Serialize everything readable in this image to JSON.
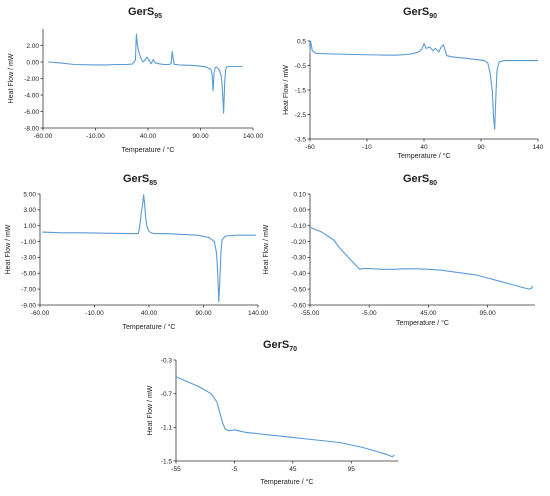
{
  "chart_data": [
    {
      "type": "line",
      "title": "GerS",
      "title_sub": "95",
      "xlabel": "Temperature / °C",
      "ylabel": "Heat Flow / mW",
      "xlim": [
        -60,
        140
      ],
      "ylim": [
        -8,
        4
      ],
      "xticks": [
        -60,
        -10,
        40,
        90,
        140
      ],
      "xtick_labels": [
        "-60.00",
        "-10.00",
        "40.00",
        "90.00",
        "140.00"
      ],
      "yticks": [
        2,
        0,
        -2,
        -4,
        -6,
        -8
      ],
      "ytick_labels": [
        "2.00",
        "0.00",
        "-2.00",
        "-4.00",
        "-6.00",
        "-8.00"
      ],
      "grid": false,
      "color": "#5b9bd5",
      "series": [
        {
          "x": [
            -55,
            -45,
            -30,
            -10,
            0,
            10,
            20,
            25,
            28,
            29,
            30,
            31,
            33,
            35,
            37,
            39,
            41,
            43,
            45,
            47,
            50,
            55,
            60,
            62,
            63,
            64,
            65,
            67,
            70,
            80,
            90,
            95,
            100,
            101,
            102,
            103,
            104,
            105,
            106,
            108,
            110,
            111,
            112,
            113,
            114,
            115,
            117,
            120,
            125,
            130
          ],
          "y": [
            0.0,
            -0.1,
            -0.3,
            -0.35,
            -0.35,
            -0.3,
            -0.3,
            -0.25,
            0.2,
            3.4,
            2.1,
            1.3,
            0.5,
            0.0,
            0.2,
            0.6,
            0.2,
            -0.2,
            0.3,
            -0.1,
            -0.2,
            -0.3,
            -0.3,
            -0.2,
            1.3,
            0.4,
            -0.3,
            -0.3,
            -0.35,
            -0.4,
            -0.5,
            -0.6,
            -0.9,
            -1.5,
            -3.5,
            -1.3,
            -0.7,
            -0.6,
            -0.7,
            -1.0,
            -1.8,
            -3.5,
            -6.2,
            -2.5,
            -0.9,
            -0.6,
            -0.55,
            -0.55,
            -0.55,
            -0.55
          ]
        }
      ]
    },
    {
      "type": "line",
      "title": "GerS",
      "title_sub": "90",
      "xlabel": "Temperature / °C",
      "ylabel": "Heat Flow / mW",
      "xlim": [
        -60,
        140
      ],
      "ylim": [
        -3.5,
        0.5
      ],
      "xticks": [
        -60,
        -10,
        40,
        90,
        140
      ],
      "xtick_labels": [
        "-60",
        "-10",
        "40",
        "90",
        "140"
      ],
      "yticks": [
        0.5,
        -0.5,
        -1.5,
        -2.5,
        -3.5
      ],
      "ytick_labels": [
        "0.5",
        "-0.5",
        "-1.5",
        "-2.5",
        "-3.5"
      ],
      "grid": false,
      "color": "#5b9bd5",
      "series": [
        {
          "x": [
            -60,
            -59.5,
            -58,
            -55,
            -40,
            -20,
            0,
            15,
            25,
            30,
            35,
            38,
            40,
            42,
            45,
            48,
            50,
            53,
            55,
            57,
            60,
            65,
            75,
            85,
            93,
            96,
            98,
            100,
            101,
            102,
            103,
            104,
            106,
            110,
            120,
            130,
            140
          ],
          "y": [
            0.0,
            0.5,
            0.1,
            0.0,
            -0.03,
            -0.05,
            -0.07,
            -0.08,
            -0.05,
            -0.02,
            0.05,
            0.15,
            0.4,
            0.2,
            0.25,
            0.1,
            0.2,
            0.05,
            0.25,
            0.35,
            -0.1,
            -0.15,
            -0.2,
            -0.25,
            -0.3,
            -0.4,
            -0.8,
            -1.6,
            -2.6,
            -3.1,
            -1.8,
            -0.7,
            -0.35,
            -0.3,
            -0.3,
            -0.3,
            -0.3
          ]
        }
      ]
    },
    {
      "type": "line",
      "title": "GerS",
      "title_sub": "85",
      "xlabel": "Temperature / °C",
      "ylabel": "Heat Flow / mW",
      "xlim": [
        -60,
        140
      ],
      "ylim": [
        -9,
        5
      ],
      "xticks": [
        -60,
        -10,
        40,
        90,
        140
      ],
      "xtick_labels": [
        "-60.00",
        "-10.00",
        "40.00",
        "90.00",
        "140.00"
      ],
      "yticks": [
        5,
        3,
        1,
        -1,
        -3,
        -5,
        -7,
        -9
      ],
      "ytick_labels": [
        "5.00",
        "3.00",
        "1.00",
        "-1.00",
        "-3.00",
        "-5.00",
        "-7.00",
        "-9.00"
      ],
      "grid": false,
      "color": "#5b9bd5",
      "series": [
        {
          "x": [
            -58,
            -40,
            -20,
            0,
            20,
            30,
            31,
            32,
            33,
            34,
            35,
            36,
            37,
            38,
            39,
            40,
            42,
            45,
            55,
            70,
            85,
            95,
            100,
            102,
            103,
            104,
            105,
            106,
            107,
            110,
            120,
            130,
            138
          ],
          "y": [
            0.2,
            0.1,
            0.1,
            0.05,
            0.0,
            0.0,
            0.5,
            1.5,
            2.8,
            3.5,
            4.9,
            3.8,
            2.0,
            1.0,
            0.6,
            0.3,
            0.1,
            0.0,
            0.0,
            -0.1,
            -0.2,
            -0.5,
            -1.0,
            -2.5,
            -5.0,
            -8.6,
            -6.0,
            -2.5,
            -0.8,
            -0.3,
            -0.2,
            -0.2,
            -0.2
          ]
        }
      ]
    },
    {
      "type": "line",
      "title": "GerS",
      "title_sub": "80",
      "xlabel": "Temperature / °C",
      "ylabel": "Heat Flow / mW",
      "xlim": [
        -55,
        135
      ],
      "ylim": [
        -0.6,
        0.1
      ],
      "xticks": [
        -55,
        -5,
        45,
        95
      ],
      "xtick_labels": [
        "-55.00",
        "-5.00",
        "45.00",
        "95.00"
      ],
      "yticks": [
        0.1,
        0.0,
        -0.1,
        -0.2,
        -0.3,
        -0.4,
        -0.5,
        -0.6
      ],
      "ytick_labels": [
        "0.10",
        "0.00",
        "-0.10",
        "-0.20",
        "-0.30",
        "-0.40",
        "-0.50",
        "-0.60"
      ],
      "grid": false,
      "color": "#5b9bd5",
      "series": [
        {
          "x": [
            -55,
            -45,
            -35,
            -30,
            -25,
            -20,
            -15,
            -13,
            -10,
            -5,
            5,
            15,
            25,
            35,
            45,
            55,
            65,
            75,
            85,
            95,
            105,
            115,
            125,
            130,
            132,
            133
          ],
          "y": [
            -0.11,
            -0.14,
            -0.19,
            -0.24,
            -0.28,
            -0.32,
            -0.36,
            -0.375,
            -0.37,
            -0.37,
            -0.375,
            -0.375,
            -0.372,
            -0.372,
            -0.375,
            -0.38,
            -0.39,
            -0.4,
            -0.41,
            -0.43,
            -0.45,
            -0.47,
            -0.49,
            -0.5,
            -0.495,
            -0.48
          ]
        }
      ]
    },
    {
      "type": "line",
      "title": "GerS",
      "title_sub": "70",
      "xlabel": "Temperature / °C",
      "ylabel": "Heat Flow / mW",
      "xlim": [
        -55,
        135
      ],
      "ylim": [
        -1.5,
        -0.3
      ],
      "xticks": [
        -55,
        -5,
        45,
        95
      ],
      "xtick_labels": [
        "-55",
        "-5",
        "45",
        "95"
      ],
      "yticks": [
        -0.3,
        -0.7,
        -1.1,
        -1.5
      ],
      "ytick_labels": [
        "-0.3",
        "-0.7",
        "-1.1",
        "-1.5"
      ],
      "grid": false,
      "color": "#5b9bd5",
      "series": [
        {
          "x": [
            -55,
            -45,
            -35,
            -25,
            -20,
            -17,
            -15,
            -13,
            -10,
            -5,
            5,
            25,
            45,
            65,
            85,
            95,
            105,
            115,
            125,
            130,
            132
          ],
          "y": [
            -0.5,
            -0.56,
            -0.62,
            -0.7,
            -0.8,
            -0.95,
            -1.05,
            -1.12,
            -1.14,
            -1.13,
            -1.16,
            -1.19,
            -1.22,
            -1.25,
            -1.28,
            -1.31,
            -1.34,
            -1.38,
            -1.42,
            -1.45,
            -1.43
          ]
        }
      ]
    }
  ]
}
